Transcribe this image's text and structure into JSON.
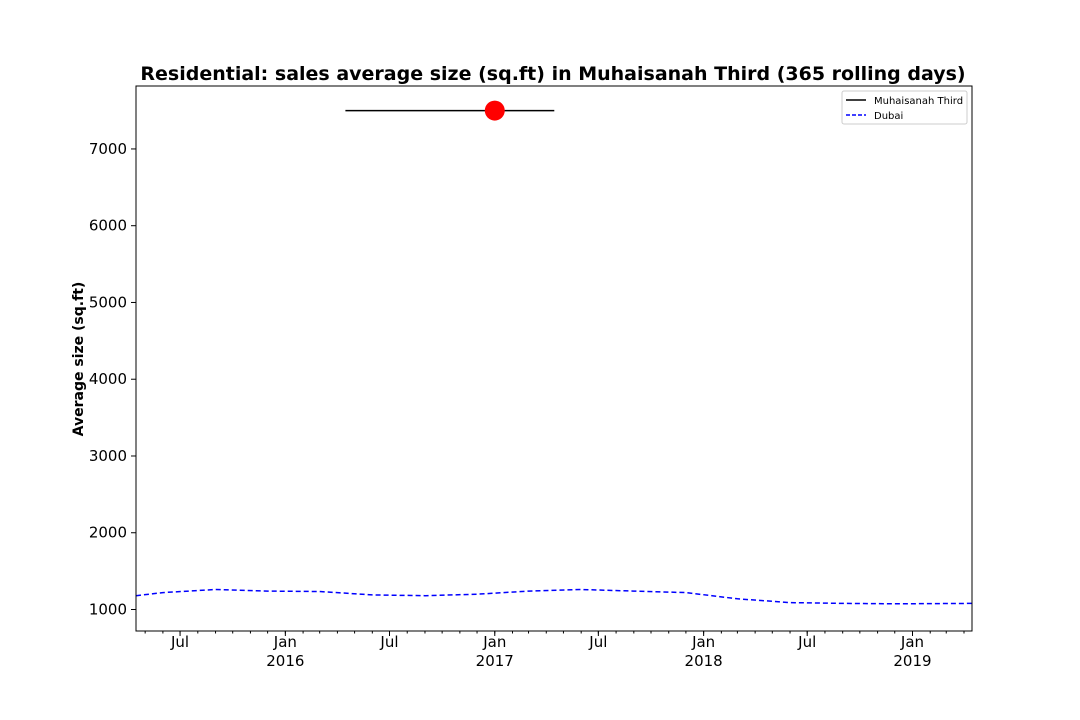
{
  "chart_data": {
    "type": "line",
    "title": "Residential: sales average size (sq.ft) in Muhaisanah Third (365 rolling days)",
    "xlabel": "",
    "ylabel": "Average size (sq.ft)",
    "xlim": [
      "2015-04-15",
      "2019-04-15"
    ],
    "ylim": [
      720,
      7820
    ],
    "yticks": [
      1000,
      2000,
      3000,
      4000,
      5000,
      6000,
      7000
    ],
    "xticks": [
      {
        "date": "2015-07-01",
        "label": "Jul",
        "sublabel": ""
      },
      {
        "date": "2016-01-01",
        "label": "Jan",
        "sublabel": "2016"
      },
      {
        "date": "2016-07-01",
        "label": "Jul",
        "sublabel": ""
      },
      {
        "date": "2017-01-01",
        "label": "Jan",
        "sublabel": "2017"
      },
      {
        "date": "2017-07-01",
        "label": "Jul",
        "sublabel": ""
      },
      {
        "date": "2018-01-01",
        "label": "Jan",
        "sublabel": "2018"
      },
      {
        "date": "2018-07-01",
        "label": "Jul",
        "sublabel": ""
      },
      {
        "date": "2019-01-01",
        "label": "Jan",
        "sublabel": "2019"
      }
    ],
    "grid": false,
    "legend_position": "top-right",
    "series": [
      {
        "name": "Muhaisanah Third",
        "color": "#000000",
        "style": "solid",
        "x": [
          "2016-04-15",
          "2017-04-15"
        ],
        "y": [
          7500,
          7500
        ]
      },
      {
        "name": "Muhaisanah Third",
        "color": "#ff0000",
        "style": "marker",
        "x": [
          "2017-01-01"
        ],
        "y": [
          7500
        ]
      },
      {
        "name": "Dubai",
        "color": "#0000ff",
        "style": "dashed",
        "x": [
          "2015-04-15",
          "2015-06-01",
          "2015-09-01",
          "2015-12-01",
          "2016-03-01",
          "2016-06-01",
          "2016-09-01",
          "2016-12-01",
          "2017-03-01",
          "2017-06-01",
          "2017-09-01",
          "2017-12-01",
          "2018-03-01",
          "2018-06-01",
          "2018-09-01",
          "2018-12-01",
          "2019-04-15"
        ],
        "y": [
          1180,
          1220,
          1260,
          1240,
          1235,
          1190,
          1180,
          1200,
          1240,
          1260,
          1240,
          1220,
          1140,
          1090,
          1080,
          1075,
          1080
        ]
      }
    ],
    "legend": [
      {
        "label": "Muhaisanah Third",
        "color": "#000000",
        "style": "solid"
      },
      {
        "label": "Dubai",
        "color": "#0000ff",
        "style": "dashed"
      }
    ]
  }
}
